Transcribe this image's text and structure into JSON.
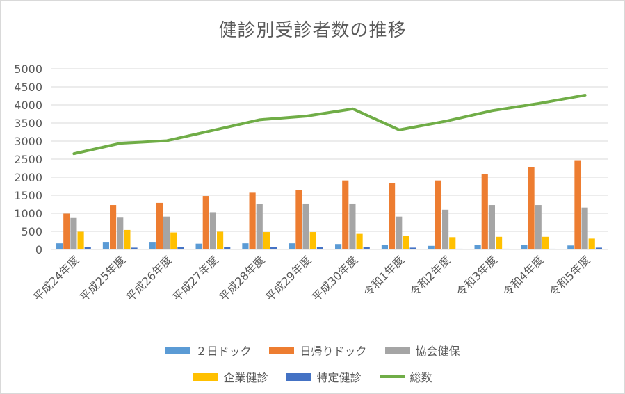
{
  "chart_data": {
    "type": "bar",
    "title": "健診別受診者数の推移",
    "categories": [
      "平成24年度",
      "平成25年度",
      "平成26年度",
      "平成27年度",
      "平成28年度",
      "平成29年度",
      "平成30年度",
      "令和1年度",
      "令和2年度",
      "令和3年度",
      "令和4年度",
      "令和5年度"
    ],
    "ylim": [
      0,
      5000
    ],
    "yticks": [
      0,
      500,
      1000,
      1500,
      2000,
      2500,
      3000,
      3500,
      4000,
      4500,
      5000
    ],
    "ytick_labels": [
      "0",
      "500",
      "1000",
      "1500",
      "2000",
      "2500",
      "3000",
      "3500",
      "4000",
      "4500",
      "5000"
    ],
    "grid": true,
    "legend_position": "bottom",
    "series": [
      {
        "name": "２日ドック",
        "type": "bar",
        "color": "#5b9bd5",
        "values": [
          170,
          210,
          210,
          160,
          170,
          170,
          150,
          130,
          100,
          120,
          130,
          110
        ]
      },
      {
        "name": "日帰りドック",
        "type": "bar",
        "color": "#ed7d31",
        "values": [
          990,
          1230,
          1290,
          1480,
          1570,
          1650,
          1910,
          1830,
          1910,
          2080,
          2280,
          2470
        ]
      },
      {
        "name": "協会健保",
        "type": "bar",
        "color": "#a5a5a5",
        "values": [
          870,
          880,
          910,
          1030,
          1250,
          1270,
          1270,
          910,
          1100,
          1230,
          1230,
          1160
        ]
      },
      {
        "name": "企業健診",
        "type": "bar",
        "color": "#ffc000",
        "values": [
          490,
          540,
          470,
          490,
          480,
          480,
          430,
          370,
          340,
          350,
          350,
          300
        ]
      },
      {
        "name": "特定健診",
        "type": "bar",
        "color": "#4472c4",
        "values": [
          70,
          50,
          60,
          60,
          60,
          60,
          60,
          50,
          20,
          20,
          20,
          50
        ]
      },
      {
        "name": "総数",
        "type": "line",
        "color": "#70ad47",
        "values": [
          2650,
          2940,
          3010,
          3300,
          3590,
          3690,
          3890,
          3310,
          3550,
          3840,
          4040,
          4270
        ]
      }
    ]
  }
}
